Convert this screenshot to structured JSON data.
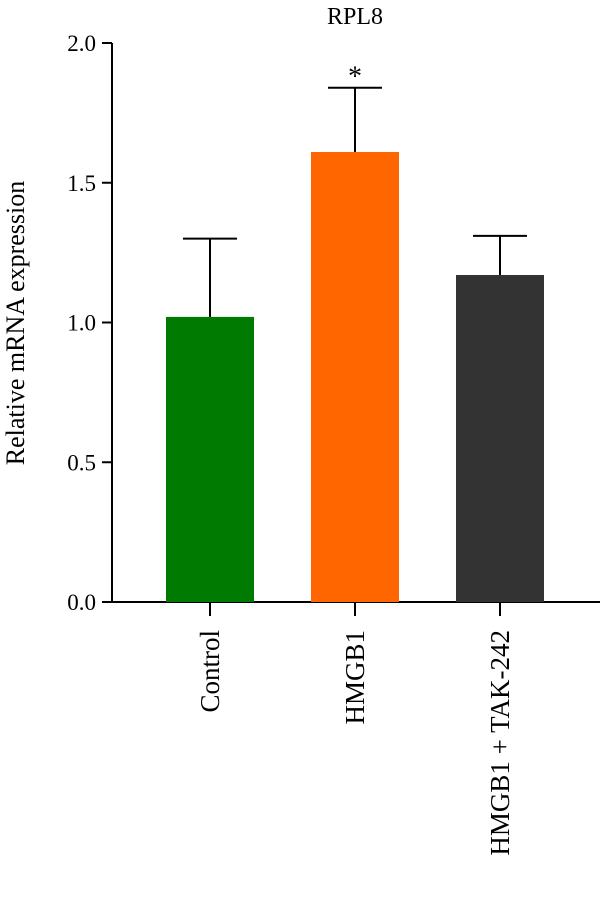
{
  "chart_data": {
    "type": "bar",
    "title": "RPL8",
    "xlabel": "",
    "ylabel": "Relative mRNA expression",
    "ylim": [
      0,
      2.0
    ],
    "yticks": [
      "0.0",
      "0.5",
      "1.0",
      "1.5",
      "2.0"
    ],
    "categories": [
      "Control",
      "HMGB1",
      "HMGB1 + TAK-242"
    ],
    "values": [
      1.02,
      1.61,
      1.17
    ],
    "error_upper": [
      1.3,
      1.84,
      1.31
    ],
    "annotations": [
      "",
      "*",
      ""
    ],
    "colors": [
      "#007a00",
      "#ff6600",
      "#333333"
    ],
    "grid": false,
    "legend": "none"
  }
}
